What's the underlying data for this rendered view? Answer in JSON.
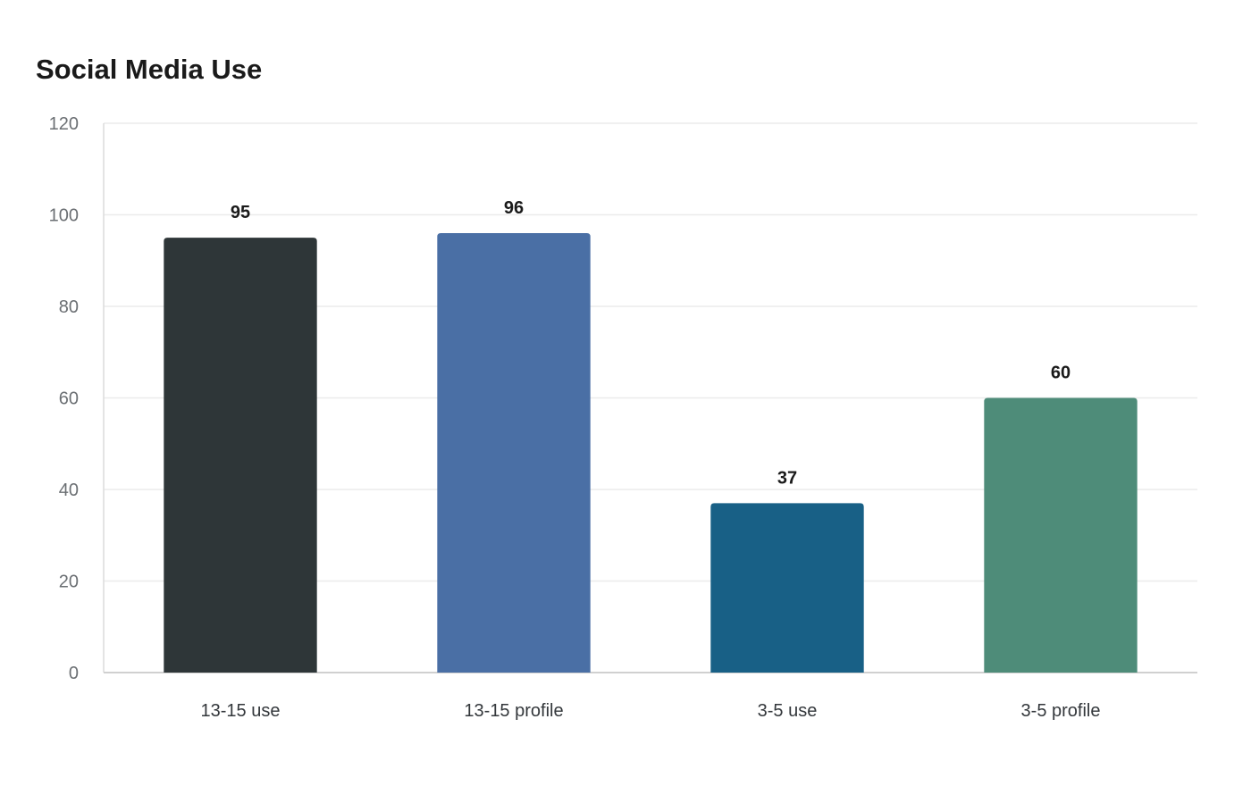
{
  "chart_data": {
    "type": "bar",
    "title": "Social Media Use",
    "xlabel": "",
    "ylabel": "",
    "categories": [
      "13-15 use",
      "13-15 profile",
      "3-5 use",
      "3-5 profile"
    ],
    "values": [
      95,
      96,
      37,
      60
    ],
    "colors": [
      "#2e3638",
      "#4a6fa5",
      "#186086",
      "#4e8c79"
    ],
    "ylim": [
      0,
      120
    ],
    "yticks": [
      0,
      20,
      40,
      60,
      80,
      100,
      120
    ],
    "grid": true,
    "legend": "none",
    "data_labels": true
  }
}
